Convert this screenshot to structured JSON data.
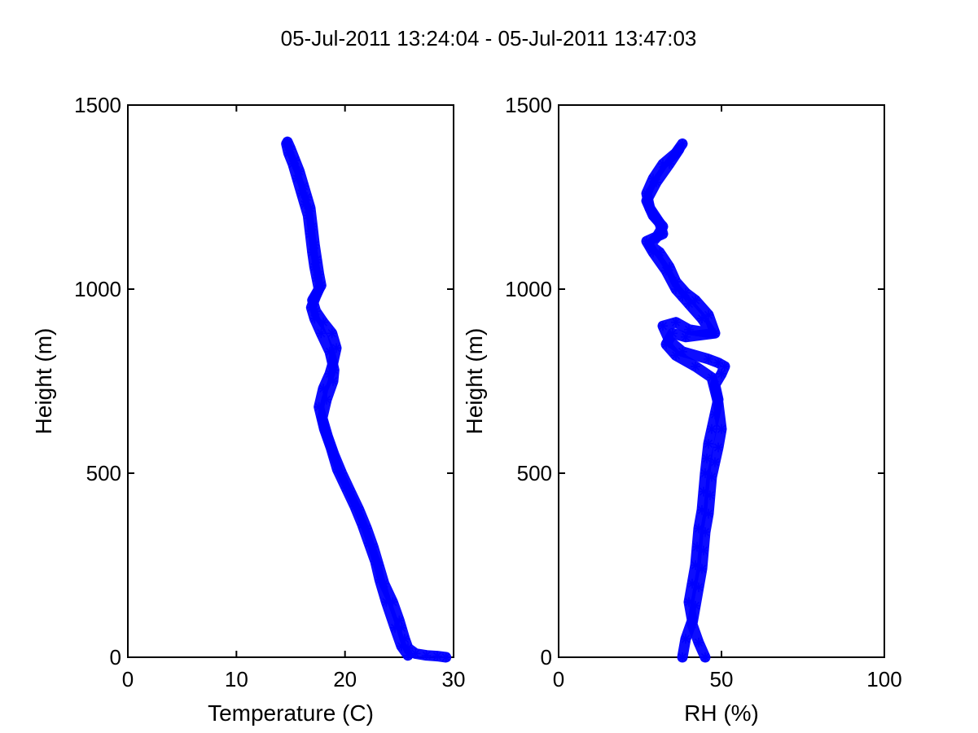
{
  "figure": {
    "title": "05-Jul-2011 13:24:04 - 05-Jul-2011 13:47:03"
  },
  "chart_data": [
    {
      "type": "line",
      "title": "",
      "xlabel": "Temperature (C)",
      "ylabel": "Height (m)",
      "xlim": [
        0,
        30
      ],
      "ylim": [
        0,
        1500
      ],
      "xticks": [
        0,
        10,
        20,
        30
      ],
      "yticks": [
        0,
        500,
        1000,
        1500
      ],
      "xtick_labels": [
        "0",
        "10",
        "20",
        "30"
      ],
      "ytick_labels": [
        "0",
        "500",
        "1000",
        "1500"
      ],
      "grid": false,
      "marker": "asterisk",
      "color": "#0000ff",
      "series": [
        {
          "x": [
            29.3,
            28.5,
            27.5,
            26.5,
            25.8,
            25.5,
            25.2,
            25.0,
            24.4,
            23.6,
            23.1,
            22.6,
            22.0,
            21.3,
            20.5,
            19.7,
            19.0,
            18.4,
            17.9,
            18.3,
            18.9,
            19.0,
            18.6,
            17.8,
            17.2,
            16.9,
            17.3,
            17.6,
            17.4,
            17.2,
            17.0,
            16.8,
            16.6,
            16.3,
            16.0,
            15.6,
            15.2,
            14.8,
            14.6
          ],
          "y": [
            0,
            3,
            5,
            10,
            25,
            50,
            80,
            100,
            150,
            200,
            250,
            300,
            350,
            400,
            450,
            500,
            550,
            600,
            650,
            700,
            750,
            780,
            830,
            880,
            920,
            950,
            980,
            1000,
            1030,
            1060,
            1100,
            1150,
            1200,
            1230,
            1260,
            1300,
            1340,
            1370,
            1395
          ]
        },
        {
          "x": [
            25.8,
            25.2,
            24.6,
            23.8,
            23.2,
            22.8,
            22.2,
            21.6,
            20.9,
            20.1,
            19.3,
            18.7,
            18.1,
            17.6,
            18.0,
            18.6,
            18.9,
            19.2,
            18.8,
            18.0,
            17.3,
            17.0,
            17.4,
            17.8,
            17.6,
            17.4,
            17.2,
            17.0,
            16.8,
            16.5,
            16.2,
            15.8,
            15.4,
            15.0,
            14.7
          ],
          "y": [
            5,
            30,
            80,
            150,
            210,
            260,
            310,
            360,
            410,
            460,
            510,
            570,
            620,
            680,
            730,
            770,
            800,
            840,
            880,
            910,
            940,
            970,
            990,
            1010,
            1040,
            1080,
            1120,
            1170,
            1220,
            1250,
            1280,
            1320,
            1350,
            1380,
            1400
          ]
        }
      ]
    },
    {
      "type": "line",
      "title": "",
      "xlabel": "RH (%)",
      "ylabel": "Height (m)",
      "xlim": [
        0,
        100
      ],
      "ylim": [
        0,
        1500
      ],
      "xticks": [
        0,
        50,
        100
      ],
      "yticks": [
        0,
        500,
        1000,
        1500
      ],
      "xtick_labels": [
        "0",
        "50",
        "100"
      ],
      "ytick_labels": [
        "0",
        "500",
        "1000",
        "1500"
      ],
      "grid": false,
      "marker": "asterisk",
      "color": "#0000ff",
      "series": [
        {
          "x": [
            38,
            39,
            41,
            40,
            41,
            42,
            42.5,
            43,
            44,
            44.5,
            45,
            45.5,
            46,
            47,
            48,
            49,
            48,
            50,
            51,
            49,
            46,
            38,
            34,
            32,
            36,
            40,
            47,
            44,
            40,
            38,
            36,
            33,
            29,
            27,
            32,
            31,
            28,
            27,
            29,
            32,
            36,
            38
          ],
          "y": [
            0,
            50,
            100,
            150,
            200,
            250,
            300,
            350,
            400,
            450,
            500,
            540,
            580,
            620,
            660,
            700,
            740,
            770,
            790,
            800,
            810,
            830,
            860,
            900,
            910,
            890,
            880,
            920,
            960,
            980,
            1000,
            1050,
            1100,
            1130,
            1150,
            1180,
            1220,
            1260,
            1300,
            1340,
            1370,
            1395
          ]
        },
        {
          "x": [
            45,
            43,
            41,
            42,
            43,
            44,
            44.5,
            45,
            46,
            46.5,
            47,
            48,
            49,
            50,
            49,
            47,
            42,
            36,
            33,
            35,
            39,
            48,
            46,
            42,
            39,
            36,
            34,
            31,
            28,
            30,
            32,
            29,
            27,
            30,
            34,
            37
          ],
          "y": [
            0,
            40,
            90,
            140,
            190,
            240,
            290,
            340,
            390,
            440,
            490,
            530,
            570,
            620,
            690,
            760,
            790,
            820,
            850,
            880,
            870,
            880,
            930,
            970,
            990,
            1020,
            1060,
            1100,
            1120,
            1140,
            1170,
            1200,
            1240,
            1290,
            1340,
            1380
          ]
        }
      ]
    }
  ]
}
